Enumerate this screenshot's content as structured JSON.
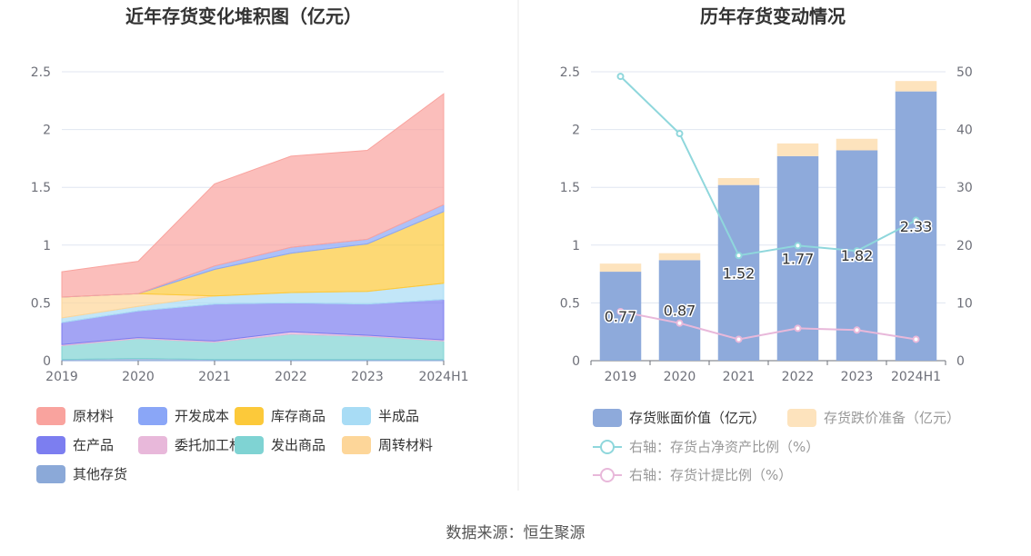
{
  "left_chart": {
    "title": "近年存货变化堆积图（亿元）",
    "y_ticks": [
      "0",
      "0.5",
      "1",
      "1.5",
      "2",
      "2.5"
    ],
    "legend": [
      {
        "label": "原材料",
        "color": "#f9a39e"
      },
      {
        "label": "开发成本",
        "color": "#8aa6f7"
      },
      {
        "label": "库存商品",
        "color": "#fcc93a"
      },
      {
        "label": "半成品",
        "color": "#a8dcf5"
      },
      {
        "label": "在产品",
        "color": "#7c7ef0"
      },
      {
        "label": "委托加工材料",
        "color": "#e8b8da"
      },
      {
        "label": "发出商品",
        "color": "#7fd3d3"
      },
      {
        "label": "周转材料",
        "color": "#fdd699"
      },
      {
        "label": "其他存货",
        "color": "#8ba9d8"
      }
    ]
  },
  "right_chart": {
    "title": "历年存货变动情况",
    "y_left_ticks": [
      "0",
      "0.5",
      "1",
      "1.5",
      "2",
      "2.5"
    ],
    "y_right_ticks": [
      "0",
      "10",
      "20",
      "30",
      "40",
      "50"
    ],
    "legend": [
      {
        "label": "存货账面价值（亿元）",
        "color": "#8eaadb",
        "kind": "bar",
        "muted": false
      },
      {
        "label": "存货跌价准备（亿元）",
        "color": "#fde3bd",
        "kind": "bar",
        "muted": true
      },
      {
        "label": "右轴：存货占净资产比例（%）",
        "color": "#8fd7dc",
        "kind": "line",
        "muted": true
      },
      {
        "label": "右轴：存货计提比例（%）",
        "color": "#e8b8da",
        "kind": "line",
        "muted": true
      }
    ]
  },
  "source_text": "数据来源：恒生聚源",
  "chart_data": [
    {
      "type": "area",
      "title": "近年存货变化堆积图（亿元）",
      "categories": [
        "2019",
        "2020",
        "2021",
        "2022",
        "2023",
        "2024H1"
      ],
      "ylim": [
        0,
        2.5
      ],
      "stacked": true,
      "grid": true,
      "legend_position": "bottom",
      "series": [
        {
          "name": "其他存货",
          "values": [
            0.01,
            0.02,
            0.01,
            0.01,
            0.01,
            0.01
          ]
        },
        {
          "name": "发出商品",
          "values": [
            0.12,
            0.17,
            0.15,
            0.22,
            0.2,
            0.16
          ]
        },
        {
          "name": "委托加工材料",
          "values": [
            0.01,
            0.01,
            0.01,
            0.02,
            0.01,
            0.01
          ]
        },
        {
          "name": "在产品",
          "values": [
            0.19,
            0.23,
            0.32,
            0.25,
            0.27,
            0.35
          ]
        },
        {
          "name": "半成品",
          "values": [
            0.04,
            0.04,
            0.07,
            0.09,
            0.11,
            0.14
          ]
        },
        {
          "name": "周转材料",
          "values": [
            0.18,
            0.11,
            0.0,
            0.0,
            0.0,
            0.0
          ]
        },
        {
          "name": "库存商品",
          "values": [
            0.0,
            0.0,
            0.23,
            0.34,
            0.41,
            0.62
          ]
        },
        {
          "name": "开发成本",
          "values": [
            0.0,
            0.0,
            0.03,
            0.05,
            0.04,
            0.06
          ]
        },
        {
          "name": "原材料",
          "values": [
            0.22,
            0.28,
            0.71,
            0.79,
            0.77,
            0.96
          ]
        }
      ]
    },
    {
      "type": "bar",
      "title": "历年存货变动情况",
      "categories": [
        "2019",
        "2020",
        "2021",
        "2022",
        "2023",
        "2024H1"
      ],
      "ylim": [
        0,
        2.5
      ],
      "y2lim": [
        0,
        50
      ],
      "stacked": true,
      "grid": true,
      "legend_position": "bottom",
      "series": [
        {
          "name": "存货账面价值（亿元）",
          "values": [
            0.77,
            0.87,
            1.52,
            1.77,
            1.82,
            2.33
          ],
          "labels": [
            "0.77",
            "0.87",
            "1.52",
            "1.77",
            "1.82",
            "2.33"
          ]
        },
        {
          "name": "存货跌价准备（亿元）",
          "values": [
            0.07,
            0.06,
            0.06,
            0.11,
            0.1,
            0.09
          ]
        },
        {
          "name": "右轴：存货占净资产比例（%）",
          "axis": "right",
          "type": "line",
          "values": [
            49.2,
            39.3,
            18.2,
            19.9,
            19.0,
            24.3
          ]
        },
        {
          "name": "右轴：存货计提比例（%）",
          "axis": "right",
          "type": "line",
          "values": [
            8.5,
            6.5,
            3.7,
            5.6,
            5.3,
            3.7
          ]
        }
      ]
    }
  ]
}
